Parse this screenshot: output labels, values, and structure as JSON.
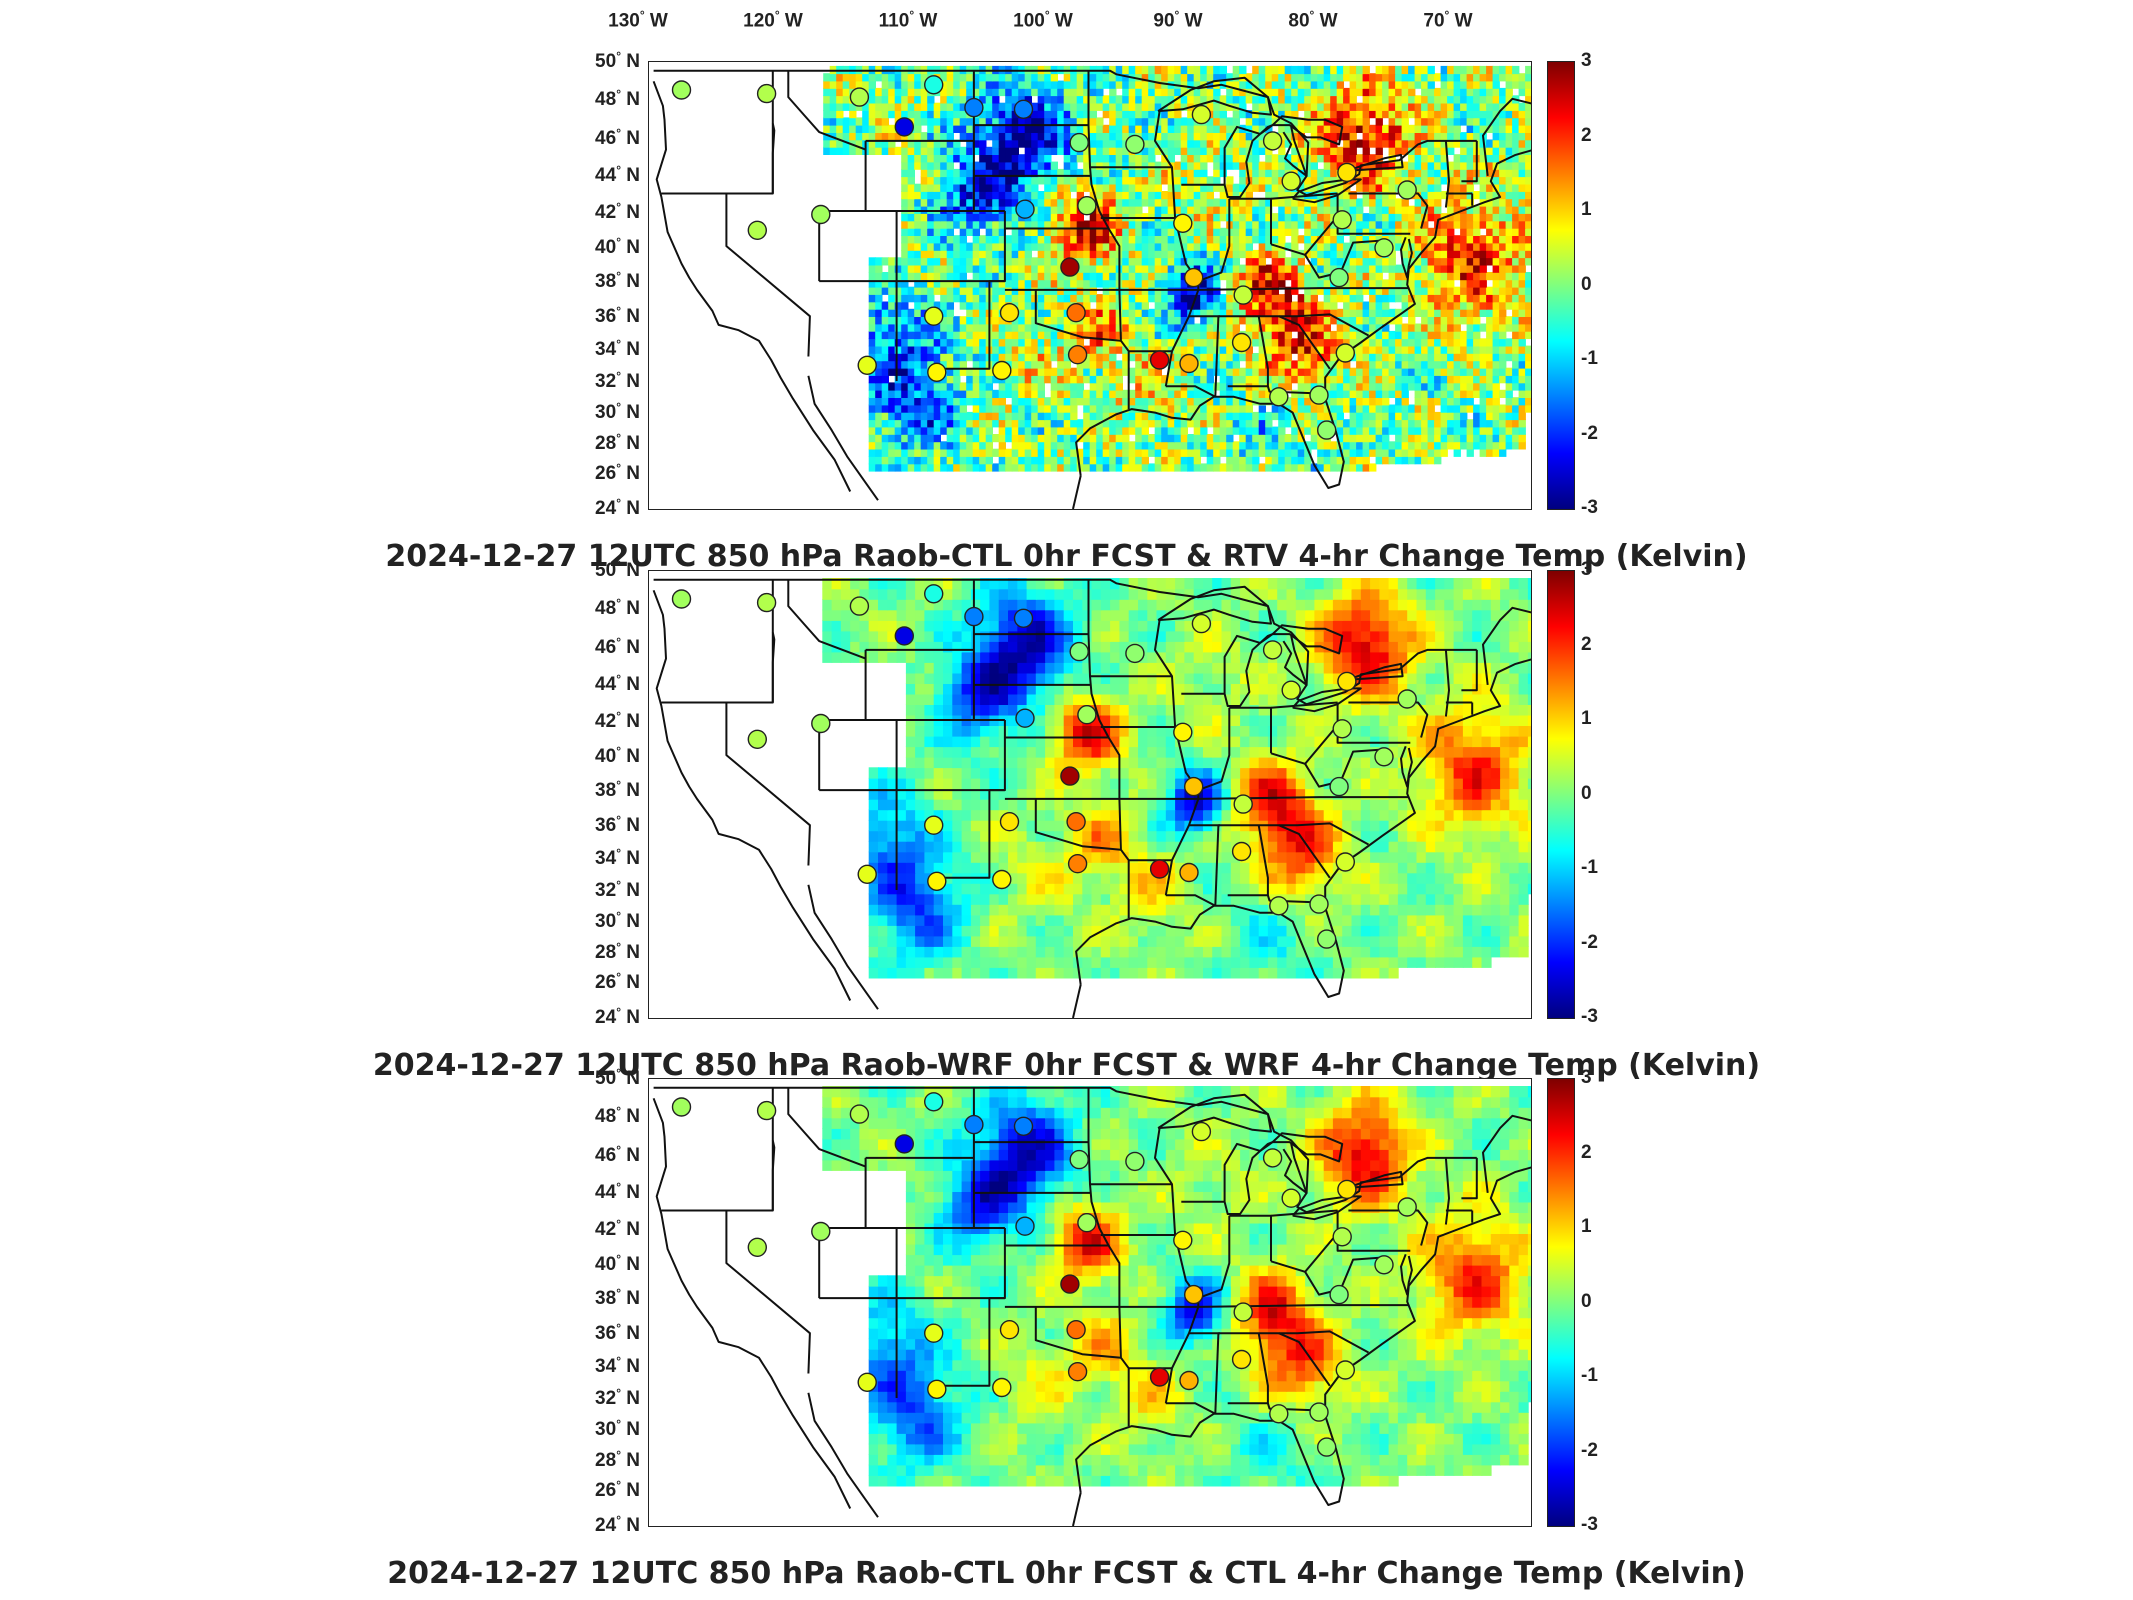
{
  "lon_labels": [
    {
      "deg": "130",
      "hemi": "W"
    },
    {
      "deg": "120",
      "hemi": "W"
    },
    {
      "deg": "110",
      "hemi": "W"
    },
    {
      "deg": "100",
      "hemi": "W"
    },
    {
      "deg": "90",
      "hemi": "W"
    },
    {
      "deg": "80",
      "hemi": "W"
    },
    {
      "deg": "70",
      "hemi": "W"
    }
  ],
  "lat_labels": [
    {
      "deg": "50",
      "hemi": "N"
    },
    {
      "deg": "48",
      "hemi": "N"
    },
    {
      "deg": "46",
      "hemi": "N"
    },
    {
      "deg": "44",
      "hemi": "N"
    },
    {
      "deg": "42",
      "hemi": "N"
    },
    {
      "deg": "40",
      "hemi": "N"
    },
    {
      "deg": "38",
      "hemi": "N"
    },
    {
      "deg": "36",
      "hemi": "N"
    },
    {
      "deg": "34",
      "hemi": "N"
    },
    {
      "deg": "32",
      "hemi": "N"
    },
    {
      "deg": "30",
      "hemi": "N"
    },
    {
      "deg": "28",
      "hemi": "N"
    },
    {
      "deg": "26",
      "hemi": "N"
    },
    {
      "deg": "24",
      "hemi": "N"
    }
  ],
  "colorbar": {
    "ticks": [
      "3",
      "2",
      "1",
      "0",
      "-1",
      "-2",
      "-3"
    ],
    "range": [
      -3,
      3
    ],
    "colors": [
      "#00007f",
      "#0000ff",
      "#007fff",
      "#00ffff",
      "#7fff7f",
      "#ffff00",
      "#ff7f00",
      "#ff0000",
      "#7f0000"
    ]
  },
  "panels": [
    {
      "title": "2024-12-27 12UTC 850 hPa Raob-CTL 0hr FCST & RTV 4-hr Change Temp (Kelvin)",
      "style": "speckled"
    },
    {
      "title": "2024-12-27 12UTC 850 hPa Raob-WRF 0hr FCST & WRF 4-hr Change Temp (Kelvin)",
      "style": "smooth"
    },
    {
      "title": "2024-12-27 12UTC 850 hPa Raob-CTL 0hr FCST & CTL 4-hr Change Temp (Kelvin)",
      "style": "smooth"
    }
  ],
  "raob_stations": [
    {
      "lon": -122.9,
      "lat": 47.9,
      "value": 0.2
    },
    {
      "lon": -117.4,
      "lat": 47.7,
      "value": 0.3
    },
    {
      "lon": -111.4,
      "lat": 47.5,
      "value": 0.3
    },
    {
      "lon": -108.5,
      "lat": 45.8,
      "value": -2.4
    },
    {
      "lon": -106.6,
      "lat": 48.2,
      "value": -0.6
    },
    {
      "lon": -104.0,
      "lat": 46.9,
      "value": -1.5
    },
    {
      "lon": -100.8,
      "lat": 46.8,
      "value": -1.5
    },
    {
      "lon": -97.2,
      "lat": 44.9,
      "value": 0.0
    },
    {
      "lon": -93.6,
      "lat": 44.8,
      "value": 0.1
    },
    {
      "lon": -89.3,
      "lat": 46.5,
      "value": 0.5
    },
    {
      "lon": -84.7,
      "lat": 45.0,
      "value": 0.4
    },
    {
      "lon": -83.5,
      "lat": 42.7,
      "value": 0.5
    },
    {
      "lon": -79.9,
      "lat": 43.2,
      "value": 0.9
    },
    {
      "lon": -76.0,
      "lat": 42.2,
      "value": 0.2
    },
    {
      "lon": -80.2,
      "lat": 40.5,
      "value": 0.3
    },
    {
      "lon": -77.5,
      "lat": 38.9,
      "value": 0.2
    },
    {
      "lon": -80.4,
      "lat": 37.2,
      "value": 0.0
    },
    {
      "lon": -86.6,
      "lat": 36.2,
      "value": 0.4
    },
    {
      "lon": -89.8,
      "lat": 37.2,
      "value": 1.1
    },
    {
      "lon": -90.5,
      "lat": 40.3,
      "value": 0.8
    },
    {
      "lon": -96.7,
      "lat": 41.3,
      "value": 0.2
    },
    {
      "lon": -100.7,
      "lat": 41.1,
      "value": -1.2
    },
    {
      "lon": -97.8,
      "lat": 37.8,
      "value": 2.8
    },
    {
      "lon": -97.4,
      "lat": 35.2,
      "value": 1.6
    },
    {
      "lon": -101.7,
      "lat": 35.2,
      "value": 0.9
    },
    {
      "lon": -106.6,
      "lat": 35.0,
      "value": 0.6
    },
    {
      "lon": -110.9,
      "lat": 32.2,
      "value": 0.6
    },
    {
      "lon": -106.4,
      "lat": 31.8,
      "value": 0.8
    },
    {
      "lon": -102.2,
      "lat": 31.9,
      "value": 0.8
    },
    {
      "lon": -97.3,
      "lat": 32.8,
      "value": 1.5
    },
    {
      "lon": -92.0,
      "lat": 32.5,
      "value": 2.4
    },
    {
      "lon": -90.1,
      "lat": 32.3,
      "value": 1.2
    },
    {
      "lon": -86.7,
      "lat": 33.5,
      "value": 0.9
    },
    {
      "lon": -84.3,
      "lat": 30.4,
      "value": 0.3
    },
    {
      "lon": -81.7,
      "lat": 30.5,
      "value": 0.2
    },
    {
      "lon": -81.2,
      "lat": 28.5,
      "value": 0.1
    },
    {
      "lon": -80.0,
      "lat": 32.9,
      "value": 0.5
    },
    {
      "lon": -118.0,
      "lat": 39.9,
      "value": 0.3
    },
    {
      "lon": -113.9,
      "lat": 40.8,
      "value": 0.2
    }
  ]
}
